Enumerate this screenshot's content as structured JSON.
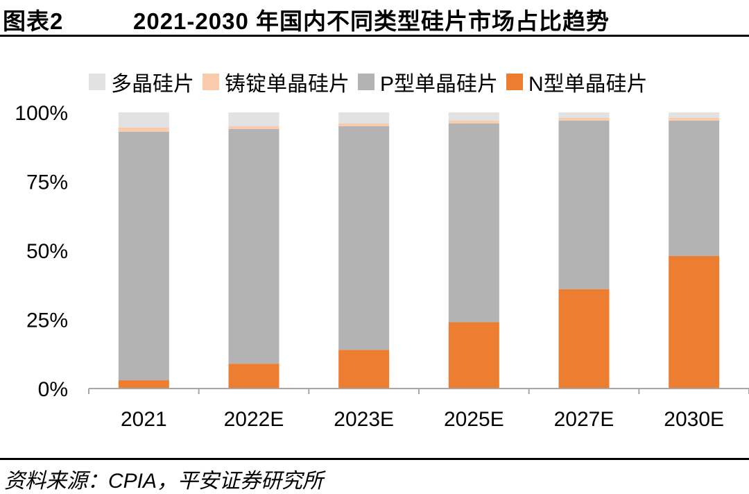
{
  "header": {
    "figure_label": "图表2",
    "title": "2021-2030 年国内不同类型硅片市场占比趋势"
  },
  "chart_data": {
    "type": "bar",
    "stacked": true,
    "categories": [
      "2021",
      "2022E",
      "2023E",
      "2025E",
      "2027E",
      "2030E"
    ],
    "series": [
      {
        "name": "N型单晶硅片",
        "color": "#ED7D31",
        "values": [
          3,
          9,
          14,
          24,
          36,
          48
        ]
      },
      {
        "name": "P型单晶硅片",
        "color": "#B3B3B3",
        "values": [
          90,
          85,
          81,
          72,
          61,
          49
        ]
      },
      {
        "name": "铸锭单晶硅片",
        "color": "#F8CBAD",
        "values": [
          1.5,
          1,
          1,
          1,
          1,
          1
        ]
      },
      {
        "name": "多晶硅片",
        "color": "#E2E2E2",
        "values": [
          5.5,
          5,
          4,
          3,
          2,
          2
        ]
      }
    ],
    "legend_order": [
      "多晶硅片",
      "铸锭单晶硅片",
      "P型单晶硅片",
      "N型单晶硅片"
    ],
    "y_ticks": [
      "0%",
      "25%",
      "50%",
      "75%",
      "100%"
    ],
    "ylim": [
      0,
      100
    ],
    "legend_position": "top",
    "grid": false
  },
  "footer": {
    "source": "资料来源：CPIA，平安证券研究所"
  }
}
